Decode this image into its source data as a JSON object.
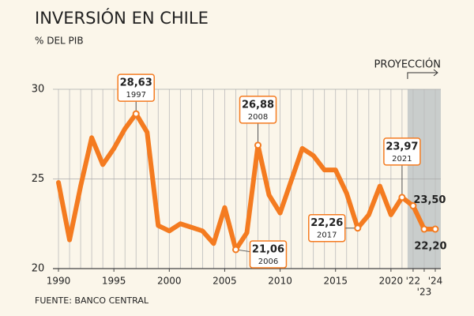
{
  "chart_data": {
    "type": "line",
    "title": "INVERSIÓN EN CHILE",
    "subtitle": "% DEL PIB",
    "source": "FUENTE: BANCO CENTRAL",
    "projection_label": "PROYECCIÓN",
    "projection_from": 2021.5,
    "x": [
      1990,
      1991,
      1992,
      1993,
      1994,
      1995,
      1996,
      1997,
      1998,
      1999,
      2000,
      2001,
      2002,
      2003,
      2004,
      2005,
      2006,
      2007,
      2008,
      2009,
      2010,
      2011,
      2012,
      2013,
      2014,
      2015,
      2016,
      2017,
      2018,
      2019,
      2020,
      2021,
      2022,
      2023,
      2024
    ],
    "series": [
      {
        "name": "Inversión",
        "color": "#f47b20",
        "values": [
          24.8,
          21.6,
          24.6,
          27.3,
          25.8,
          26.7,
          27.8,
          28.63,
          27.6,
          22.4,
          22.1,
          22.5,
          22.3,
          22.1,
          21.4,
          23.4,
          21.06,
          22.0,
          26.88,
          24.1,
          23.1,
          24.9,
          26.7,
          26.3,
          25.5,
          25.5,
          24.2,
          22.26,
          23.0,
          24.6,
          23.0,
          23.97,
          23.5,
          22.2,
          22.2
        ],
        "value_labels": [
          null,
          null,
          null,
          null,
          null,
          null,
          null,
          "28,63",
          null,
          null,
          null,
          null,
          null,
          null,
          null,
          null,
          "21,06",
          null,
          "26,88",
          null,
          null,
          null,
          null,
          null,
          null,
          null,
          null,
          "22,26",
          null,
          null,
          null,
          "23,97",
          "23,50",
          "22,20",
          null
        ]
      }
    ],
    "xlim": [
      1989.5,
      2024.5
    ],
    "xticks": [
      1990,
      1995,
      2000,
      2005,
      2010,
      2015,
      2020,
      {
        "value": 2022,
        "label": "'22"
      },
      {
        "value": 2023,
        "label": "'23"
      },
      {
        "value": 2024,
        "label": "'24"
      }
    ],
    "ylim": [
      20,
      30
    ],
    "yticks": [
      20,
      25,
      30
    ],
    "grid": true
  }
}
